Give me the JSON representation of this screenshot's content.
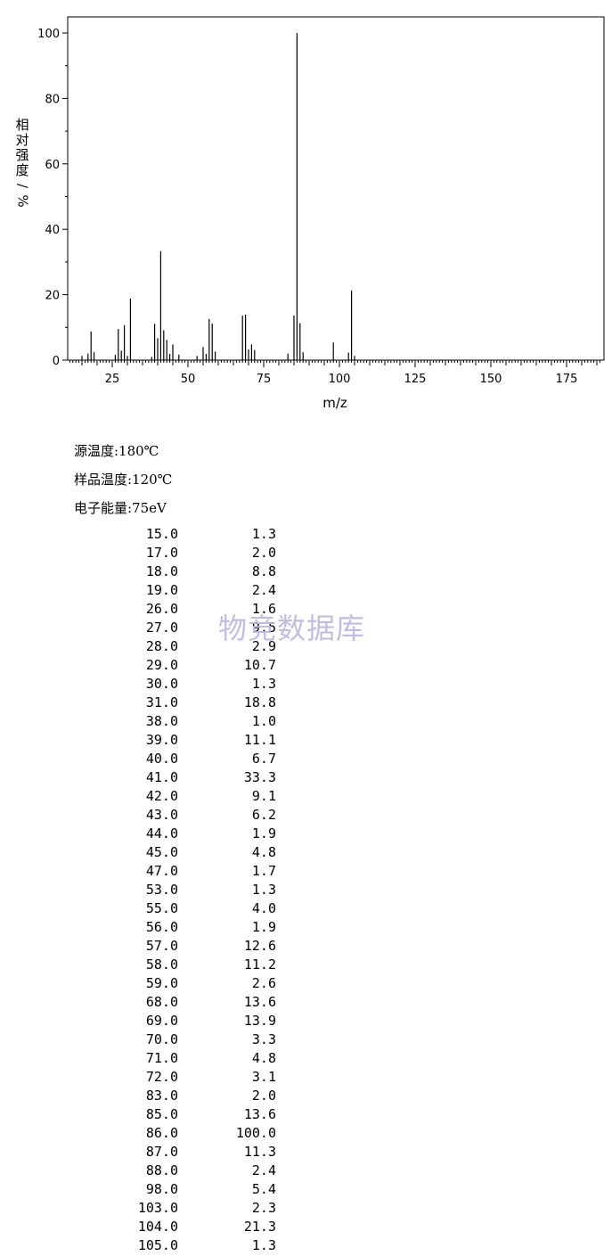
{
  "chart_data": {
    "type": "bar",
    "xlabel": "m/z",
    "ylabel": "相对强度/%",
    "xlim": [
      10,
      187
    ],
    "ylim": [
      0,
      105
    ],
    "x_ticks": [
      25,
      50,
      75,
      100,
      125,
      150,
      175
    ],
    "y_ticks": [
      0,
      20,
      40,
      60,
      80,
      100
    ],
    "grid": false,
    "points": [
      {
        "x": "15.0",
        "y": "1.3"
      },
      {
        "x": "17.0",
        "y": "2.0"
      },
      {
        "x": "18.0",
        "y": "8.8"
      },
      {
        "x": "19.0",
        "y": "2.4"
      },
      {
        "x": "26.0",
        "y": "1.6"
      },
      {
        "x": "27.0",
        "y": "9.5"
      },
      {
        "x": "28.0",
        "y": "2.9"
      },
      {
        "x": "29.0",
        "y": "10.7"
      },
      {
        "x": "30.0",
        "y": "1.3"
      },
      {
        "x": "31.0",
        "y": "18.8"
      },
      {
        "x": "38.0",
        "y": "1.0"
      },
      {
        "x": "39.0",
        "y": "11.1"
      },
      {
        "x": "40.0",
        "y": "6.7"
      },
      {
        "x": "41.0",
        "y": "33.3"
      },
      {
        "x": "42.0",
        "y": "9.1"
      },
      {
        "x": "43.0",
        "y": "6.2"
      },
      {
        "x": "44.0",
        "y": "1.9"
      },
      {
        "x": "45.0",
        "y": "4.8"
      },
      {
        "x": "47.0",
        "y": "1.7"
      },
      {
        "x": "53.0",
        "y": "1.3"
      },
      {
        "x": "55.0",
        "y": "4.0"
      },
      {
        "x": "56.0",
        "y": "1.9"
      },
      {
        "x": "57.0",
        "y": "12.6"
      },
      {
        "x": "58.0",
        "y": "11.2"
      },
      {
        "x": "59.0",
        "y": "2.6"
      },
      {
        "x": "68.0",
        "y": "13.6"
      },
      {
        "x": "69.0",
        "y": "13.9"
      },
      {
        "x": "70.0",
        "y": "3.3"
      },
      {
        "x": "71.0",
        "y": "4.8"
      },
      {
        "x": "72.0",
        "y": "3.1"
      },
      {
        "x": "83.0",
        "y": "2.0"
      },
      {
        "x": "85.0",
        "y": "13.6"
      },
      {
        "x": "86.0",
        "y": "100.0"
      },
      {
        "x": "87.0",
        "y": "11.3"
      },
      {
        "x": "88.0",
        "y": "2.4"
      },
      {
        "x": "98.0",
        "y": "5.4"
      },
      {
        "x": "103.0",
        "y": "2.3"
      },
      {
        "x": "104.0",
        "y": "21.3"
      },
      {
        "x": "105.0",
        "y": "1.3"
      }
    ]
  },
  "conditions": {
    "source_temp": "源温度:180℃",
    "sample_temp": "样品温度:120℃",
    "electron_energy": "电子能量:75eV"
  },
  "watermark": "物竞数据库",
  "colors": {
    "watermark": "#b9b6e2",
    "line": "#000000"
  }
}
